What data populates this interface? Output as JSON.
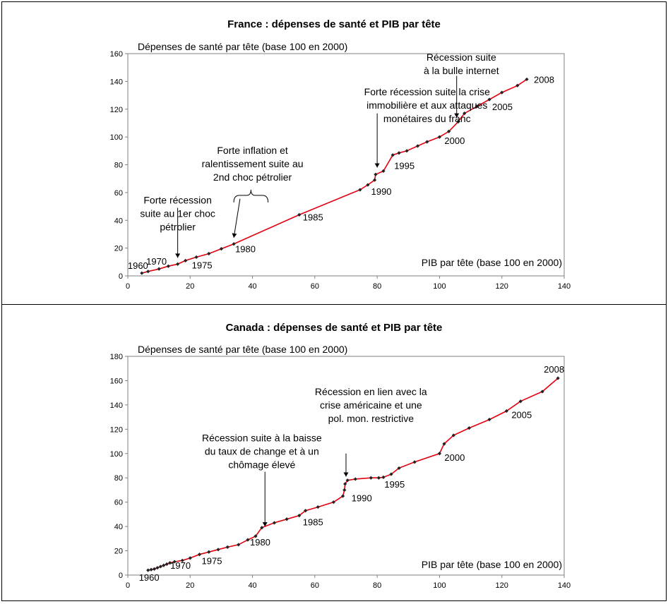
{
  "chart_data": [
    {
      "type": "line",
      "title": "France : dépenses de santé et PIB par tête",
      "xlabel": "PIB par tête (base 100 en 2000)",
      "ylabel": "Dépenses de santé par tête (base 100 en 2000)",
      "xlim": [
        0,
        140
      ],
      "ylim": [
        0,
        160
      ],
      "xticks": [
        "0",
        "20",
        "40",
        "60",
        "80",
        "100",
        "120",
        "140"
      ],
      "yticks": [
        "0",
        "20",
        "40",
        "60",
        "80",
        "100",
        "120",
        "140",
        "160"
      ],
      "grid": false,
      "line_color": "#e3000f",
      "marker_color": "#222222",
      "series": [
        {
          "points": [
            [
              4.5,
              2
            ],
            [
              6.5,
              3.2
            ],
            [
              10,
              5
            ],
            [
              13,
              7
            ],
            [
              16,
              8.5
            ],
            [
              18.5,
              11
            ],
            [
              22,
              13.5
            ],
            [
              26,
              16
            ],
            [
              30,
              19.5
            ],
            [
              34,
              23
            ],
            [
              55,
              44
            ],
            [
              74.5,
              62
            ],
            [
              77,
              65.5
            ],
            [
              79.2,
              69
            ],
            [
              79.5,
              73
            ],
            [
              82,
              75.5
            ],
            [
              85,
              87
            ],
            [
              87,
              88.5
            ],
            [
              89.5,
              90
            ],
            [
              93,
              93.5
            ],
            [
              96,
              96.5
            ],
            [
              100,
              100
            ],
            [
              103,
              104
            ],
            [
              106,
              111
            ],
            [
              108,
              117
            ],
            [
              112,
              122
            ],
            [
              116,
              127
            ],
            [
              120,
              132
            ],
            [
              125,
              137
            ],
            [
              128,
              141.5
            ]
          ]
        }
      ],
      "point_labels": [
        {
          "text": "1960",
          "x": 4.5,
          "y": 2
        },
        {
          "text": "1970",
          "x": 10,
          "y": 5
        },
        {
          "text": "1975",
          "x": 18.5,
          "y": 11
        },
        {
          "text": "1980",
          "x": 34,
          "y": 23
        },
        {
          "text": "1985",
          "x": 55,
          "y": 44
        },
        {
          "text": "1990",
          "x": 79.2,
          "y": 69
        },
        {
          "text": "1995",
          "x": 85,
          "y": 87
        },
        {
          "text": "2000",
          "x": 100,
          "y": 100
        },
        {
          "text": "2005",
          "x": 116,
          "y": 127
        },
        {
          "text": "2008",
          "x": 128,
          "y": 141.5
        }
      ],
      "annotations": [
        {
          "lines": [
            "Forte récession",
            "suite au 1er choc",
            "pétrolier"
          ],
          "x": 16,
          "y": 52
        },
        {
          "lines": [
            "Forte inflation et",
            "ralentissement suite au",
            "2nd choc pétrolier"
          ],
          "x": 40,
          "y": 88
        },
        {
          "lines": [
            "Forte récession suite la crise",
            "immobilière et aux attaques",
            "monétaires du franc"
          ],
          "x": 96,
          "y": 130
        },
        {
          "lines": [
            "Récession suite",
            "à la bulle internet"
          ],
          "x": 107,
          "y": 155
        }
      ]
    },
    {
      "type": "line",
      "title": "Canada : dépenses de santé et PIB par tête",
      "xlabel": "PIB par tête (base 100 en 2000)",
      "ylabel": "Dépenses de santé par tête (base 100 en 2000)",
      "xlim": [
        0,
        140
      ],
      "ylim": [
        0,
        180
      ],
      "xticks": [
        "0",
        "20",
        "40",
        "60",
        "80",
        "100",
        "120",
        "140"
      ],
      "yticks": [
        "0",
        "20",
        "40",
        "60",
        "80",
        "100",
        "120",
        "140",
        "160",
        "180"
      ],
      "grid": false,
      "line_color": "#e3000f",
      "marker_color": "#222222",
      "series": [
        {
          "points": [
            [
              6.5,
              4
            ],
            [
              7.5,
              4.5
            ],
            [
              8.5,
              5
            ],
            [
              9.5,
              6
            ],
            [
              10.5,
              7
            ],
            [
              11.5,
              8
            ],
            [
              12.5,
              9
            ],
            [
              13.5,
              10
            ],
            [
              15,
              11
            ],
            [
              17.5,
              12
            ],
            [
              20,
              14
            ],
            [
              23,
              17
            ],
            [
              26,
              19
            ],
            [
              29,
              21
            ],
            [
              32,
              23
            ],
            [
              35.5,
              25
            ],
            [
              38.5,
              29
            ],
            [
              41,
              32
            ],
            [
              43,
              39
            ],
            [
              47,
              43
            ],
            [
              51,
              46
            ],
            [
              55,
              49
            ],
            [
              57,
              53
            ],
            [
              61,
              56
            ],
            [
              66,
              60
            ],
            [
              69,
              65
            ],
            [
              69.5,
              70
            ],
            [
              69.7,
              75
            ],
            [
              70.5,
              78
            ],
            [
              73,
              79
            ],
            [
              78,
              80
            ],
            [
              80.5,
              80
            ],
            [
              82,
              80.5
            ],
            [
              84.5,
              83
            ],
            [
              87,
              88
            ],
            [
              92,
              93
            ],
            [
              100,
              100
            ],
            [
              101.5,
              108
            ],
            [
              104.5,
              115
            ],
            [
              109.5,
              121
            ],
            [
              116,
              128
            ],
            [
              121.5,
              135
            ],
            [
              126,
              143
            ],
            [
              133,
              151
            ],
            [
              138,
              162
            ]
          ]
        }
      ],
      "point_labels": [
        {
          "text": "1960",
          "x": 6.5,
          "y": 4
        },
        {
          "text": "1970",
          "x": 15,
          "y": 11
        },
        {
          "text": "1975",
          "x": 23,
          "y": 17
        },
        {
          "text": "1980",
          "x": 41,
          "y": 32
        },
        {
          "text": "1985",
          "x": 55,
          "y": 49
        },
        {
          "text": "1990",
          "x": 69.5,
          "y": 70
        },
        {
          "text": "1995",
          "x": 80.5,
          "y": 80
        },
        {
          "text": "2000",
          "x": 100,
          "y": 100
        },
        {
          "text": "2005",
          "x": 121.5,
          "y": 135
        },
        {
          "text": "2008",
          "x": 138,
          "y": 162
        }
      ],
      "annotations": [
        {
          "lines": [
            "Récession suite à la baisse",
            "du taux de change et à un",
            "chômage élevé"
          ],
          "x": 43,
          "y": 110
        },
        {
          "lines": [
            "Récession en lien avec la",
            "crise américaine et une",
            "pol. mon. restrictive"
          ],
          "x": 78,
          "y": 148
        }
      ]
    }
  ]
}
